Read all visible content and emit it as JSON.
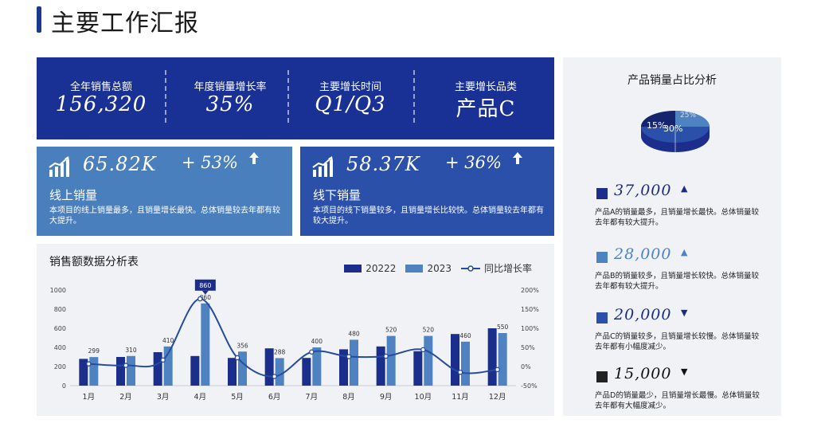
{
  "header": {
    "title": "主要工作汇报"
  },
  "kpis": [
    {
      "label": "全年销售总额",
      "value": "156,320"
    },
    {
      "label": "年度销量增长率",
      "value": "35%"
    },
    {
      "label": "主要增长时间",
      "value": "Q1/Q3"
    },
    {
      "label": "主要增长品类",
      "value": "产品C"
    }
  ],
  "cards": [
    {
      "value": "65.82K",
      "growth": "+ 53%",
      "name": "线上销量",
      "desc": "本项目的线上销量最多，且销量增长最快。总体销量较去年都有较大提升。",
      "color": "#4a7fbd"
    },
    {
      "value": "58.37K",
      "growth": "+ 36%",
      "name": "线下销量",
      "desc": "本项目的线下销量较多，且销量增长比较快。总体销量较去年都有较大提升。",
      "color": "#2b50a9"
    }
  ],
  "chart": {
    "title": "销售额数据分析表",
    "legend": [
      "20222",
      "2023",
      "同比增长率"
    ]
  },
  "chart_data": {
    "type": "bar",
    "categories": [
      "1月",
      "2月",
      "3月",
      "4月",
      "5月",
      "6月",
      "7月",
      "8月",
      "9月",
      "10月",
      "11月",
      "12月"
    ],
    "series": [
      {
        "name": "20222",
        "values": [
          280,
          300,
          350,
          310,
          290,
          390,
          290,
          380,
          410,
          360,
          540,
          600
        ],
        "color": "#1b2e8c"
      },
      {
        "name": "2023",
        "values": [
          299,
          310,
          410,
          860,
          356,
          288,
          400,
          480,
          520,
          520,
          460,
          550
        ],
        "color": "#4f82c0"
      },
      {
        "name": "同比增长率",
        "axis": "right",
        "values": [
          0.07,
          0.03,
          0.17,
          1.77,
          0.23,
          -0.26,
          0.38,
          0.26,
          0.27,
          0.44,
          -0.15,
          -0.08
        ],
        "color": "#274b9f"
      }
    ],
    "data_labels": [
      "299",
      "310",
      "410",
      "860",
      "356",
      "288",
      "400",
      "480",
      "520",
      "520",
      "460",
      "550"
    ],
    "y_left": {
      "ticks": [
        "0",
        "200",
        "400",
        "600",
        "800",
        "1000"
      ],
      "min": 0,
      "max": 1000
    },
    "y_right": {
      "ticks": [
        "-50%",
        "0%",
        "50%",
        "100%",
        "150%",
        "200%"
      ],
      "min": -0.5,
      "max": 2.0
    },
    "legend_position": "top-right"
  },
  "side": {
    "title": "产品销量占比分析",
    "pie_labels": [
      "15%",
      "30%",
      "25%"
    ],
    "products": [
      {
        "value": "37,000",
        "trend": "▲",
        "desc": "产品A的销量最多，且销量增长最快。总体销量较去年都有较大提升。",
        "color": "#1b2e8c"
      },
      {
        "value": "28,000",
        "trend": "▲",
        "desc": "产品B的销量较多，且销量增长较快。总体销量较去年都有较大提升。",
        "color": "#4f82c0"
      },
      {
        "value": "20,000",
        "trend": "▼",
        "desc": "产品C的销量较多，且销量增长较慢。总体销量较去年都有小幅度减少。",
        "color": "#2b50a9"
      },
      {
        "value": "15,000",
        "trend": "▼",
        "desc": "产品D的销量最少，且销量增长最慢。总体销量较去年都有大幅度减少。",
        "color": "#222222"
      }
    ]
  }
}
